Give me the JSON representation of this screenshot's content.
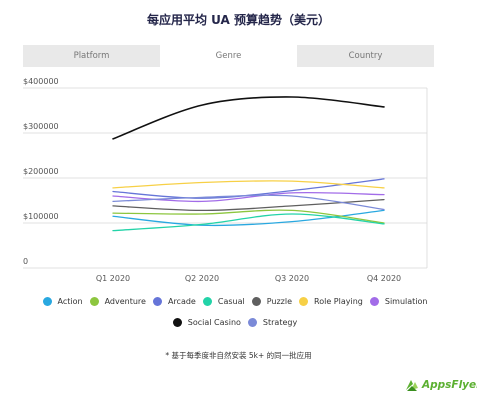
{
  "title": "每应用平均 UA 预算趋势（美元）",
  "tabs": [
    "Platform",
    "Genre",
    "Country"
  ],
  "active_tab": 1,
  "footnote": "* 基于每季度非自然安装 5k+ 的同一批应用",
  "logo": {
    "text": "AppsFlyer",
    "icon": "appsflyer-logo-icon",
    "color": "#5cb031"
  },
  "legend_rows": [
    [
      "Action",
      "Adventure",
      "Arcade",
      "Casual",
      "Puzzle",
      "Role Playing",
      "Simulation"
    ],
    [
      "Social Casino",
      "Strategy"
    ]
  ],
  "chart_data": {
    "type": "line",
    "categories": [
      "Q1 2020",
      "Q2 2020",
      "Q3 2020",
      "Q4 2020"
    ],
    "y_ticks": [
      0,
      100000,
      200000,
      300000,
      400000
    ],
    "y_tick_labels": [
      "0",
      "$100000",
      "$200000",
      "$300000",
      "$400000"
    ],
    "ylim": [
      0,
      400000
    ],
    "grid": true,
    "legend": "bottom",
    "series": [
      {
        "name": "Action",
        "color": "#29a8e0",
        "values": [
          115000,
          95000,
          103000,
          128000
        ]
      },
      {
        "name": "Adventure",
        "color": "#8dc63f",
        "values": [
          122000,
          120000,
          128000,
          100000
        ]
      },
      {
        "name": "Arcade",
        "color": "#6675d8",
        "values": [
          170000,
          155000,
          172000,
          198000
        ]
      },
      {
        "name": "Casual",
        "color": "#23d3a8",
        "values": [
          83000,
          97000,
          120000,
          98000
        ]
      },
      {
        "name": "Puzzle",
        "color": "#5f5f5f",
        "values": [
          138000,
          128000,
          138000,
          152000
        ]
      },
      {
        "name": "Role Playing",
        "color": "#f7d046",
        "values": [
          178000,
          190000,
          193000,
          178000
        ]
      },
      {
        "name": "Simulation",
        "color": "#a26ce8",
        "values": [
          160000,
          148000,
          167000,
          163000
        ]
      },
      {
        "name": "Social Casino",
        "color": "#111111",
        "values": [
          287000,
          362000,
          380000,
          358000
        ]
      },
      {
        "name": "Strategy",
        "color": "#7b8ad8",
        "values": [
          148000,
          157000,
          160000,
          130000
        ]
      }
    ]
  }
}
